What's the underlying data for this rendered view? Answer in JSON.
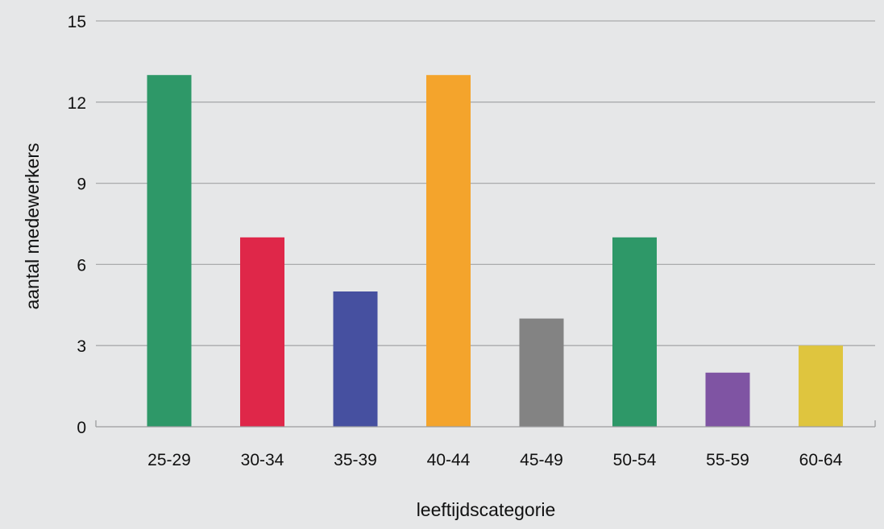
{
  "chart_data": {
    "type": "bar",
    "title": "",
    "xlabel": "leeftijdscategorie",
    "ylabel": "aantal medewerkers",
    "categories": [
      "25-29",
      "30-34",
      "35-39",
      "40-44",
      "45-49",
      "50-54",
      "55-59",
      "60-64"
    ],
    "values": [
      13,
      7,
      5,
      13,
      4,
      7,
      2,
      3
    ],
    "colors": [
      "#2e9868",
      "#df2749",
      "#4650a0",
      "#f4a42c",
      "#838383",
      "#2e9868",
      "#7f54a3",
      "#dfc53e"
    ],
    "ylim": [
      0,
      15
    ],
    "yticks": [
      0,
      3,
      6,
      9,
      12,
      15
    ],
    "grid": true,
    "legend": "none"
  }
}
